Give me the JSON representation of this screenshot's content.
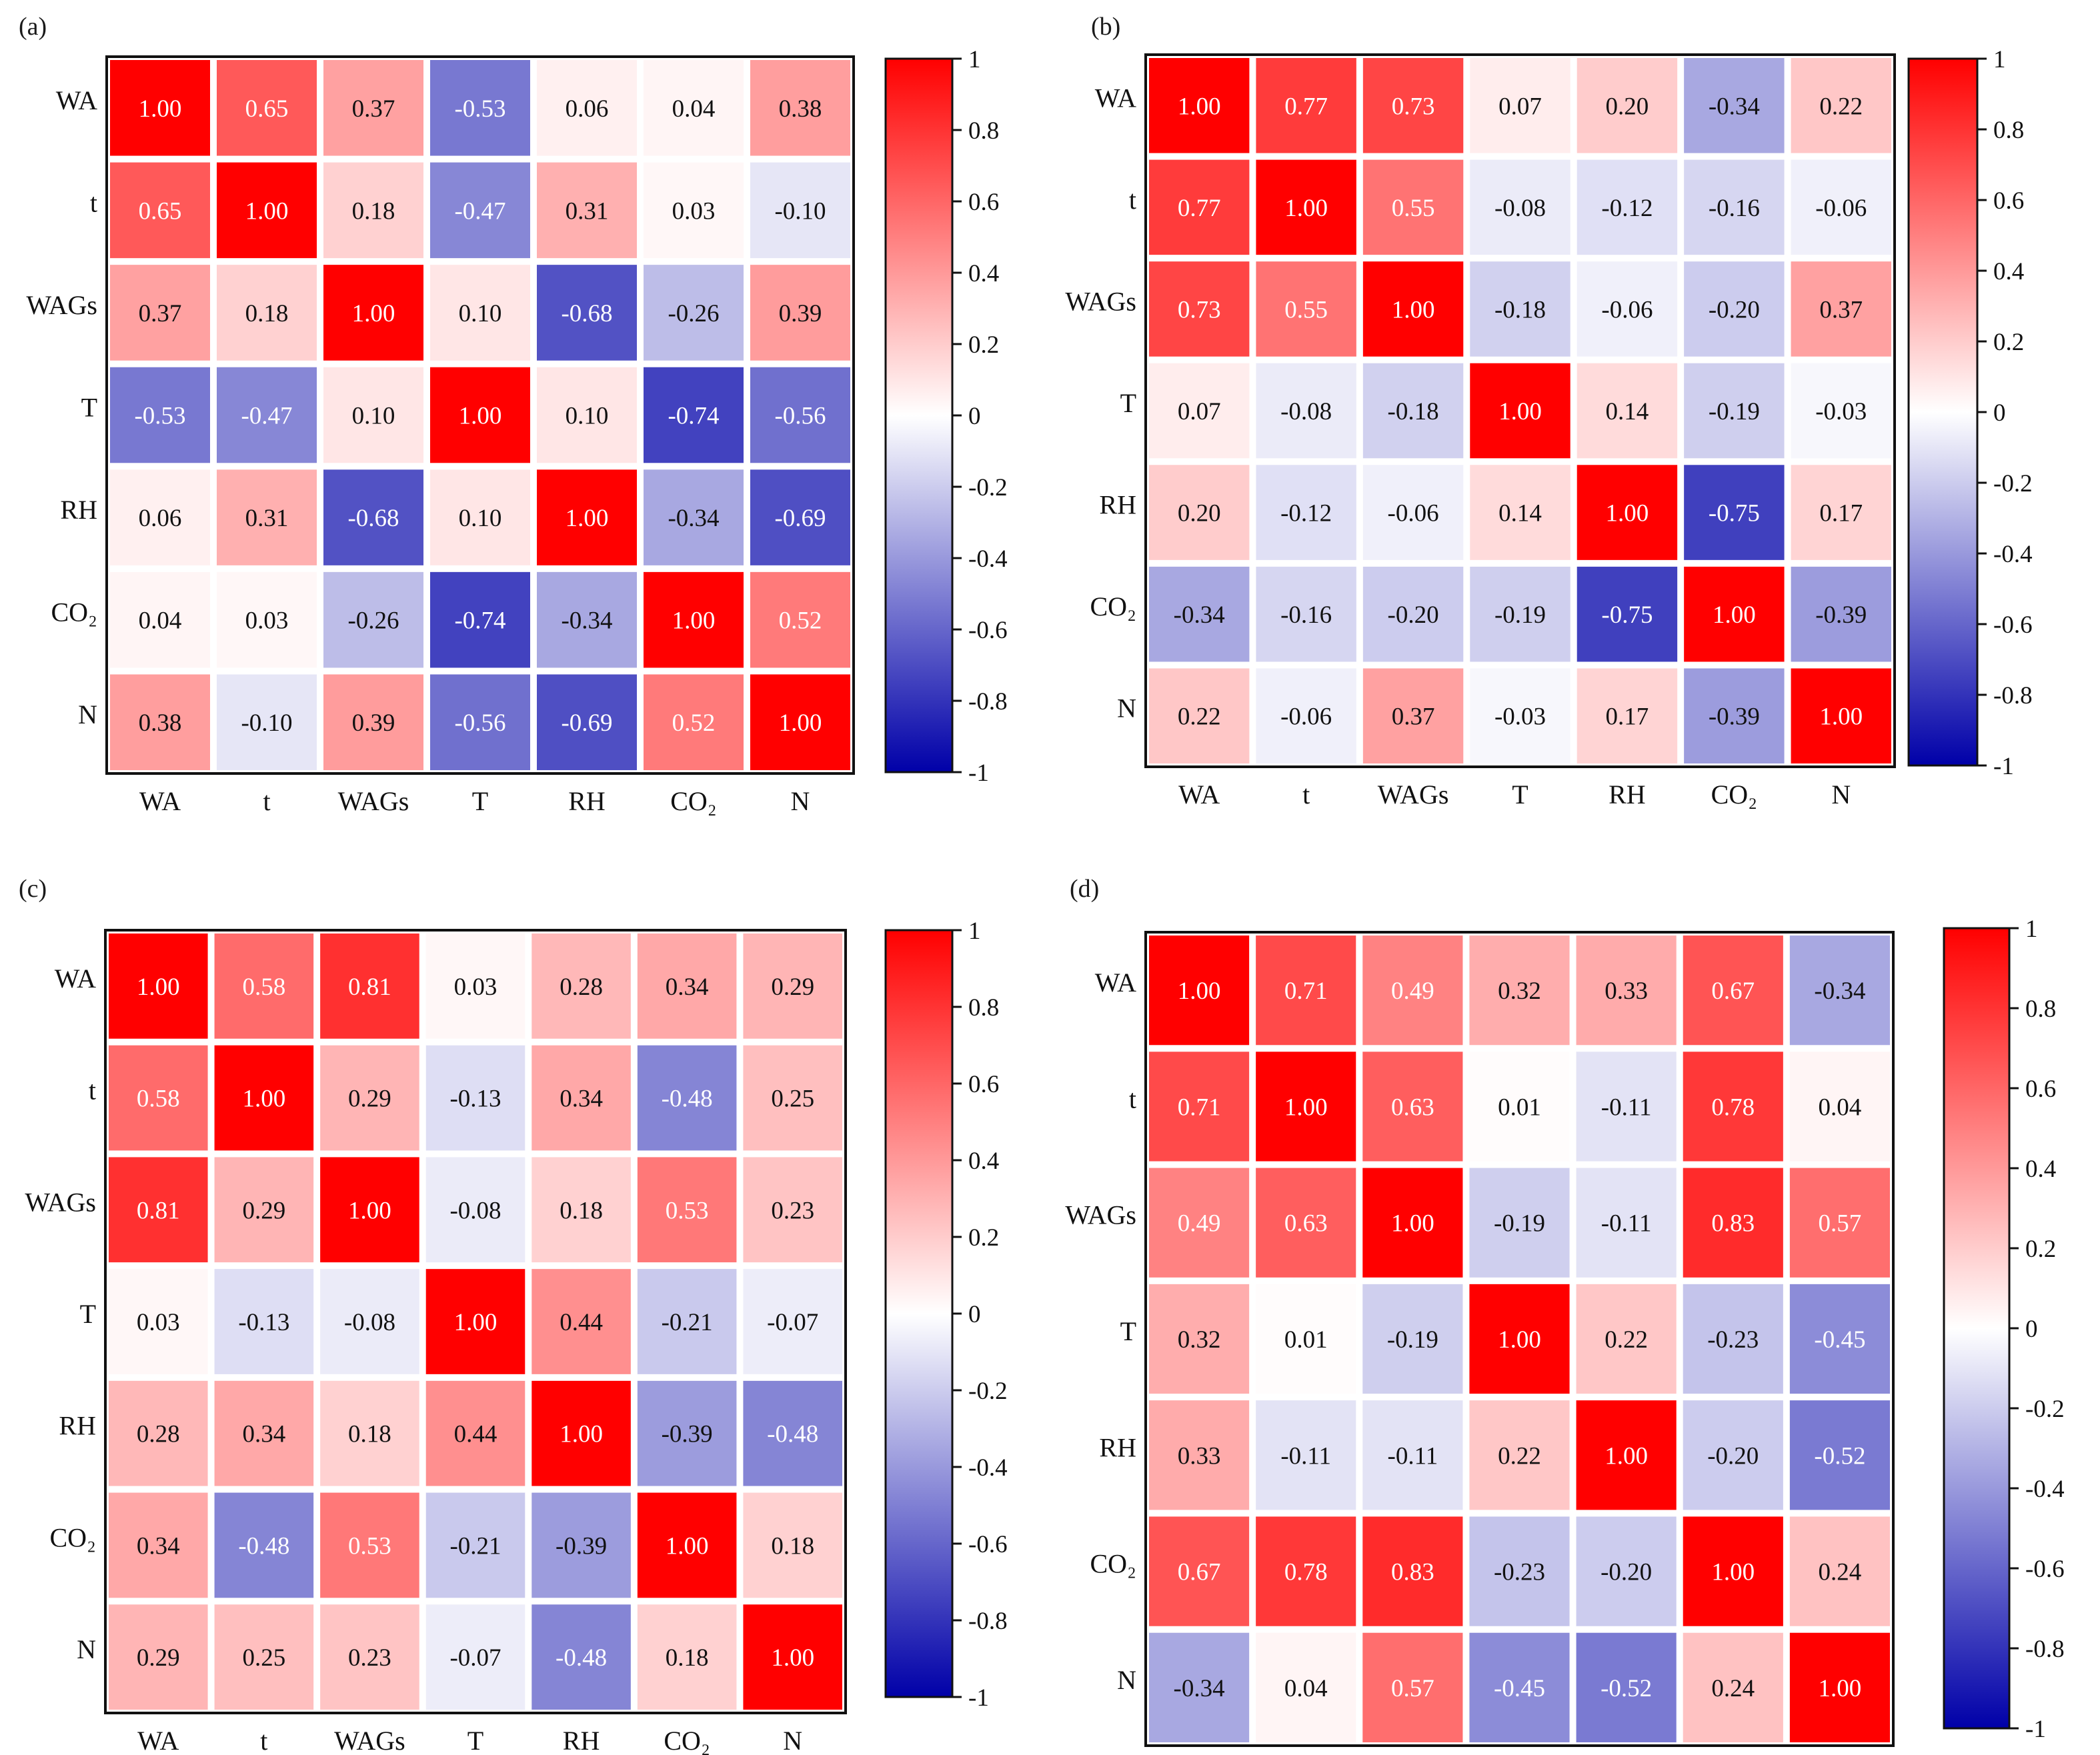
{
  "chart_data": [
    {
      "type": "heatmap",
      "panel_label": "(a)",
      "variables": [
        "WA",
        "t",
        "WAGs",
        "T",
        "RH",
        "CO₂",
        "N"
      ],
      "matrix": [
        [
          1.0,
          0.65,
          0.37,
          -0.53,
          0.06,
          0.04,
          0.38
        ],
        [
          0.65,
          1.0,
          0.18,
          -0.47,
          0.31,
          0.03,
          -0.1
        ],
        [
          0.37,
          0.18,
          1.0,
          0.1,
          -0.68,
          -0.26,
          0.39
        ],
        [
          -0.53,
          -0.47,
          0.1,
          1.0,
          0.1,
          -0.74,
          -0.56
        ],
        [
          0.06,
          0.31,
          -0.68,
          0.1,
          1.0,
          -0.34,
          -0.69
        ],
        [
          0.04,
          0.03,
          -0.26,
          -0.74,
          -0.34,
          1.0,
          0.52
        ],
        [
          0.38,
          -0.1,
          0.39,
          -0.56,
          -0.69,
          0.52,
          1.0
        ]
      ],
      "colorbar": {
        "range": [
          -1,
          1
        ],
        "ticks": [
          1,
          0.8,
          0.6,
          0.4,
          0.2,
          0,
          -0.2,
          -0.4,
          -0.6,
          -0.8,
          -1
        ],
        "tick_labels": [
          "1",
          "0.8",
          "0.6",
          "0.4",
          "0.2",
          "0",
          "-0.2",
          "-0.4",
          "-0.6",
          "-0.8",
          "-1"
        ],
        "colors": {
          "negative": "#0000a8",
          "zero": "#ffffff",
          "positive": "#ff0000"
        }
      }
    },
    {
      "type": "heatmap",
      "panel_label": "(b)",
      "variables": [
        "WA",
        "t",
        "WAGs",
        "T",
        "RH",
        "CO₂",
        "N"
      ],
      "matrix": [
        [
          1.0,
          0.77,
          0.73,
          0.07,
          0.2,
          -0.34,
          0.22
        ],
        [
          0.77,
          1.0,
          0.55,
          -0.08,
          -0.12,
          -0.16,
          -0.06
        ],
        [
          0.73,
          0.55,
          1.0,
          -0.18,
          -0.06,
          -0.2,
          0.37
        ],
        [
          0.07,
          -0.08,
          -0.18,
          1.0,
          0.14,
          -0.19,
          -0.03
        ],
        [
          0.2,
          -0.12,
          -0.06,
          0.14,
          1.0,
          -0.75,
          0.17
        ],
        [
          -0.34,
          -0.16,
          -0.2,
          -0.19,
          -0.75,
          1.0,
          -0.39
        ],
        [
          0.22,
          -0.06,
          0.37,
          -0.03,
          0.17,
          -0.39,
          1.0
        ]
      ],
      "colorbar": {
        "range": [
          -1,
          1
        ],
        "ticks": [
          1,
          0.8,
          0.6,
          0.4,
          0.2,
          0,
          -0.2,
          -0.4,
          -0.6,
          -0.8,
          -1
        ],
        "tick_labels": [
          "1",
          "0.8",
          "0.6",
          "0.4",
          "0.2",
          "0",
          "-0.2",
          "-0.4",
          "-0.6",
          "-0.8",
          "-1"
        ],
        "colors": {
          "negative": "#0000a8",
          "zero": "#ffffff",
          "positive": "#ff0000"
        }
      }
    },
    {
      "type": "heatmap",
      "panel_label": "(c)",
      "variables": [
        "WA",
        "t",
        "WAGs",
        "T",
        "RH",
        "CO₂",
        "N"
      ],
      "matrix": [
        [
          1.0,
          0.58,
          0.81,
          0.03,
          0.28,
          0.34,
          0.29
        ],
        [
          0.58,
          1.0,
          0.29,
          -0.13,
          0.34,
          -0.48,
          0.25
        ],
        [
          0.81,
          0.29,
          1.0,
          -0.08,
          0.18,
          0.53,
          0.23
        ],
        [
          0.03,
          -0.13,
          -0.08,
          1.0,
          0.44,
          -0.21,
          -0.07
        ],
        [
          0.28,
          0.34,
          0.18,
          0.44,
          1.0,
          -0.39,
          -0.48
        ],
        [
          0.34,
          -0.48,
          0.53,
          -0.21,
          -0.39,
          1.0,
          0.18
        ],
        [
          0.29,
          0.25,
          0.23,
          -0.07,
          -0.48,
          0.18,
          1.0
        ]
      ],
      "colorbar": {
        "range": [
          -1,
          1
        ],
        "ticks": [
          1,
          0.8,
          0.6,
          0.4,
          0.2,
          0,
          -0.2,
          -0.4,
          -0.6,
          -0.8,
          -1
        ],
        "tick_labels": [
          "1",
          "0.8",
          "0.6",
          "0.4",
          "0.2",
          "0",
          "-0.2",
          "-0.4",
          "-0.6",
          "-0.8",
          "-1"
        ],
        "colors": {
          "negative": "#0000a8",
          "zero": "#ffffff",
          "positive": "#ff0000"
        }
      }
    },
    {
      "type": "heatmap",
      "panel_label": "(d)",
      "variables": [
        "WA",
        "t",
        "WAGs",
        "T",
        "RH",
        "CO₂",
        "N"
      ],
      "matrix": [
        [
          1.0,
          0.71,
          0.49,
          0.32,
          0.33,
          0.67,
          -0.34
        ],
        [
          0.71,
          1.0,
          0.63,
          0.01,
          -0.11,
          0.78,
          0.04
        ],
        [
          0.49,
          0.63,
          1.0,
          -0.19,
          -0.11,
          0.83,
          0.57
        ],
        [
          0.32,
          0.01,
          -0.19,
          1.0,
          0.22,
          -0.23,
          -0.45
        ],
        [
          0.33,
          -0.11,
          -0.11,
          0.22,
          1.0,
          -0.2,
          -0.52
        ],
        [
          0.67,
          0.78,
          0.83,
          -0.23,
          -0.2,
          1.0,
          0.24
        ],
        [
          -0.34,
          0.04,
          0.57,
          -0.45,
          -0.52,
          0.24,
          1.0
        ]
      ],
      "colorbar": {
        "range": [
          -1,
          1
        ],
        "ticks": [
          1,
          0.8,
          0.6,
          0.4,
          0.2,
          0,
          -0.2,
          -0.4,
          -0.6,
          -0.8,
          -1
        ],
        "tick_labels": [
          "1",
          "0.8",
          "0.6",
          "0.4",
          "0.2",
          "0",
          "-0.2",
          "-0.4",
          "-0.6",
          "-0.8",
          "-1"
        ],
        "colors": {
          "negative": "#0000a8",
          "zero": "#ffffff",
          "positive": "#ff0000"
        }
      }
    }
  ]
}
